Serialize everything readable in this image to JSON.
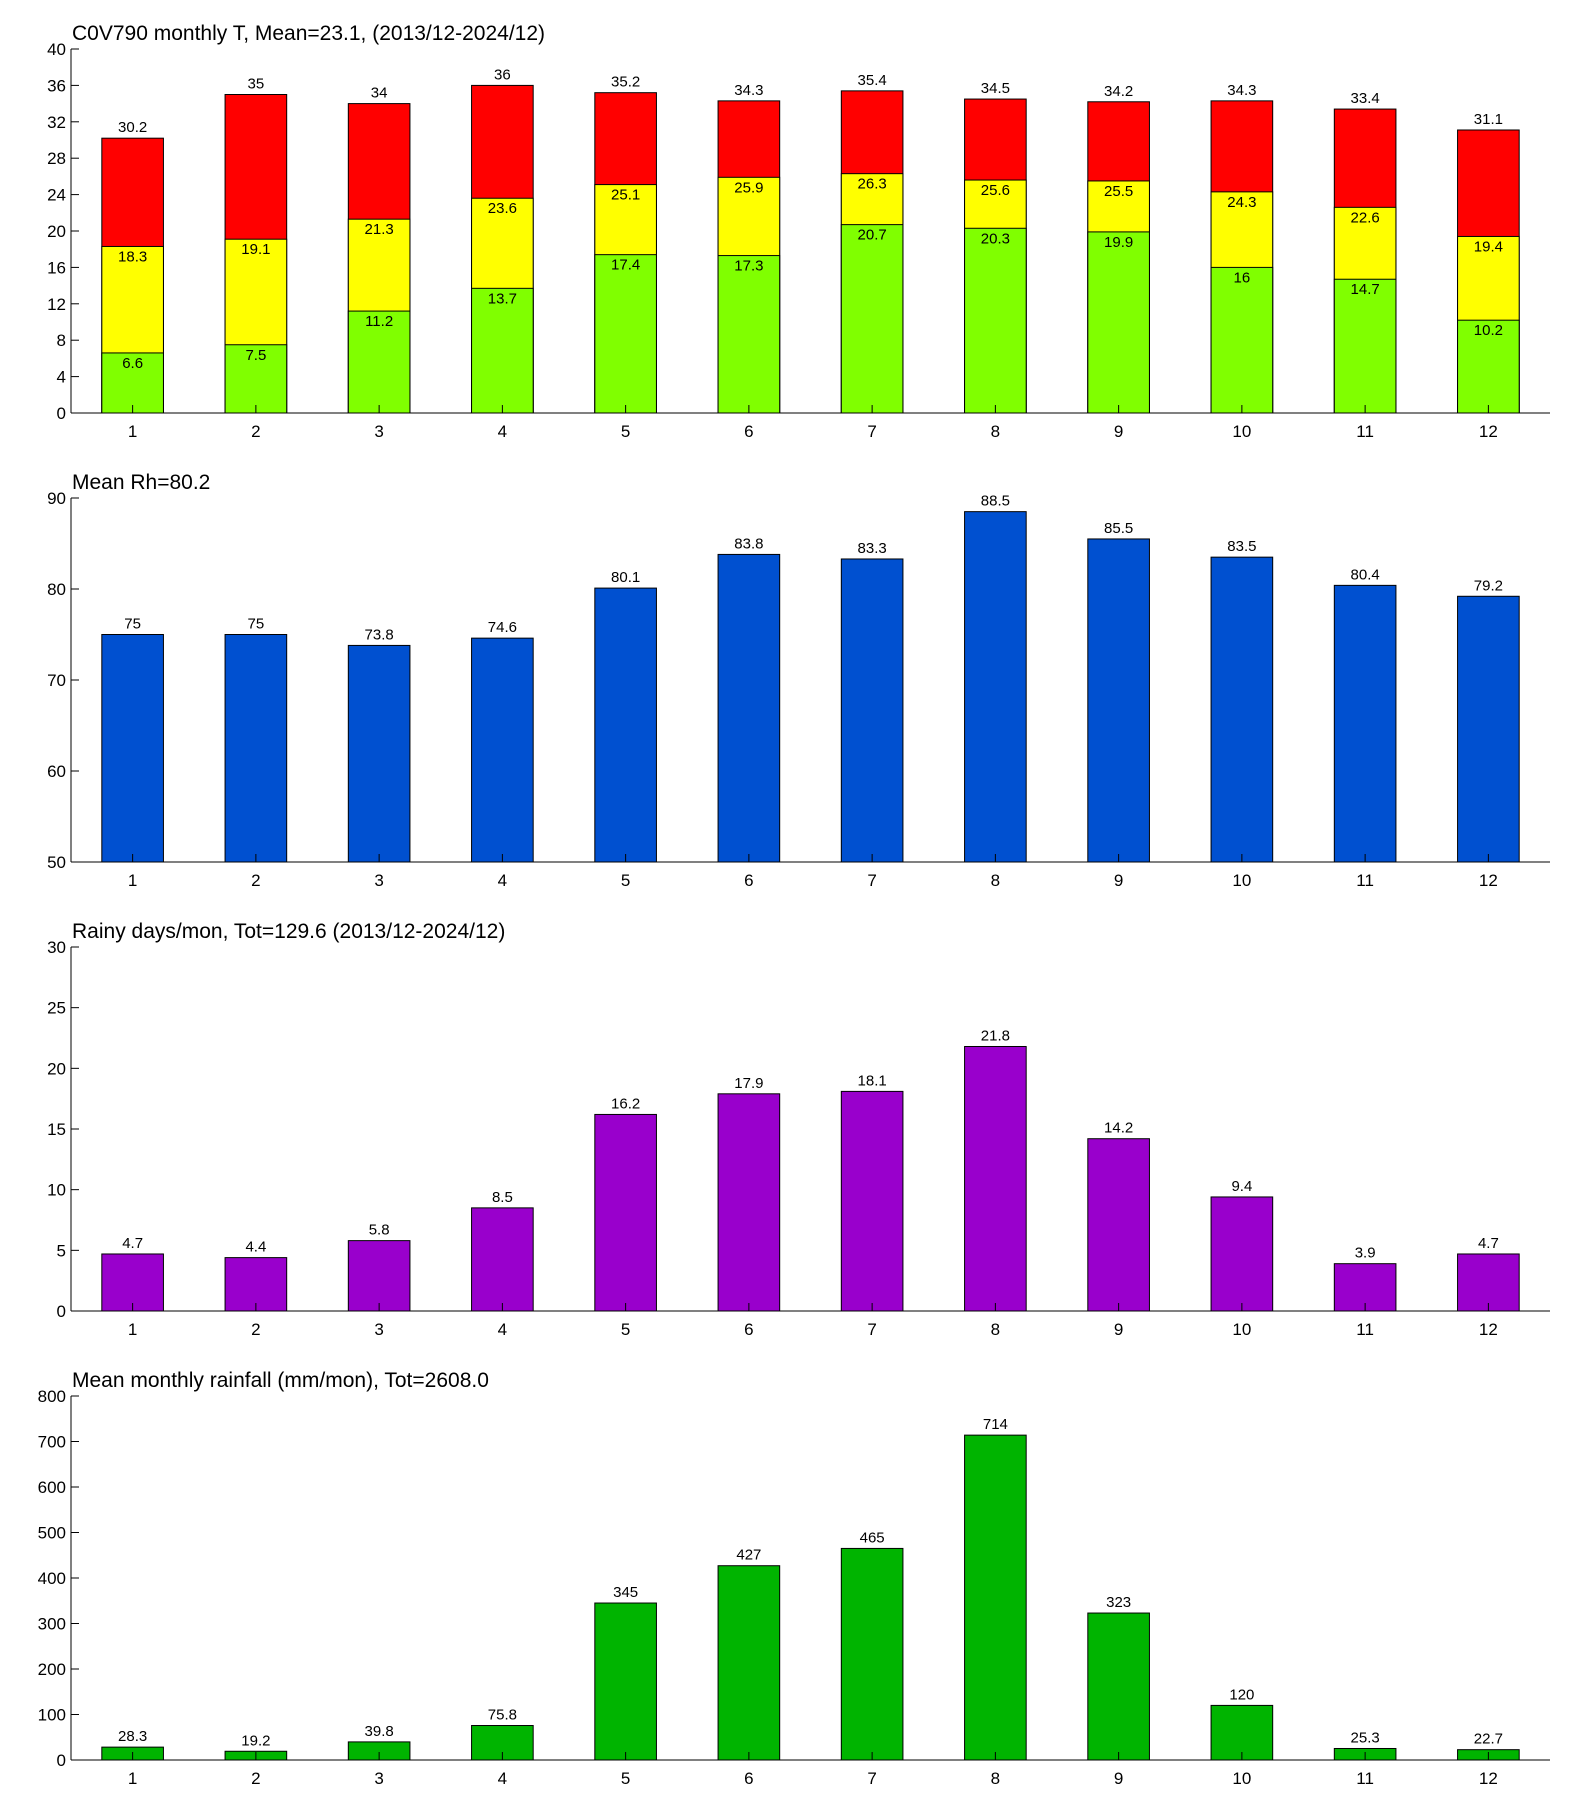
{
  "chart_data": [
    {
      "type": "overlaid_bar",
      "title": "C0V790 monthly T, Mean=23.1, (2013/12-2024/12)",
      "categories": [
        1,
        2,
        3,
        4,
        5,
        6,
        7,
        8,
        9,
        10,
        11,
        12
      ],
      "series": [
        {
          "color": "#ff0000",
          "label_position": "above",
          "values": [
            30.2,
            35,
            34,
            36,
            35.2,
            34.3,
            35.4,
            34.5,
            34.2,
            34.3,
            33.4,
            31.1
          ]
        },
        {
          "color": "#ffff00",
          "label_position": "inside",
          "values": [
            18.3,
            19.1,
            21.3,
            23.6,
            25.1,
            25.9,
            26.3,
            25.6,
            25.5,
            24.3,
            22.6,
            19.4
          ]
        },
        {
          "color": "#80ff00",
          "label_position": "inside",
          "values": [
            6.6,
            7.5,
            11.2,
            13.7,
            17.4,
            17.3,
            20.7,
            20.3,
            19.9,
            16,
            14.7,
            10.2
          ]
        }
      ],
      "ylim": [
        0,
        40
      ],
      "yticks": [
        0,
        4,
        8,
        12,
        16,
        20,
        24,
        28,
        32,
        36,
        40
      ]
    },
    {
      "type": "bar",
      "title": "Mean Rh=80.2",
      "categories": [
        1,
        2,
        3,
        4,
        5,
        6,
        7,
        8,
        9,
        10,
        11,
        12
      ],
      "series": [
        {
          "color": "#0050d0",
          "label_position": "above",
          "values": [
            75,
            75,
            73.8,
            74.6,
            80.1,
            83.8,
            83.3,
            88.5,
            85.5,
            83.5,
            80.4,
            79.2
          ]
        }
      ],
      "ylim": [
        50,
        90
      ],
      "yticks": [
        50,
        60,
        70,
        80,
        90
      ]
    },
    {
      "type": "bar",
      "title": "Rainy days/mon, Tot=129.6 (2013/12-2024/12)",
      "categories": [
        1,
        2,
        3,
        4,
        5,
        6,
        7,
        8,
        9,
        10,
        11,
        12
      ],
      "series": [
        {
          "color": "#9900cc",
          "label_position": "above",
          "values": [
            4.7,
            4.4,
            5.8,
            8.5,
            16.2,
            17.9,
            18.1,
            21.8,
            14.2,
            9.4,
            3.9,
            4.7
          ]
        }
      ],
      "ylim": [
        0,
        30
      ],
      "yticks": [
        0,
        5,
        10,
        15,
        20,
        25,
        30
      ]
    },
    {
      "type": "bar",
      "title": "Mean monthly rainfall (mm/mon), Tot=2608.0",
      "categories": [
        1,
        2,
        3,
        4,
        5,
        6,
        7,
        8,
        9,
        10,
        11,
        12
      ],
      "series": [
        {
          "color": "#00b400",
          "label_position": "above",
          "values": [
            28.3,
            19.2,
            39.8,
            75.8,
            345,
            427,
            465,
            714,
            323,
            120,
            25.3,
            22.7
          ]
        }
      ],
      "ylim": [
        0,
        800
      ],
      "yticks": [
        0,
        100,
        200,
        300,
        400,
        500,
        600,
        700,
        800
      ]
    }
  ]
}
